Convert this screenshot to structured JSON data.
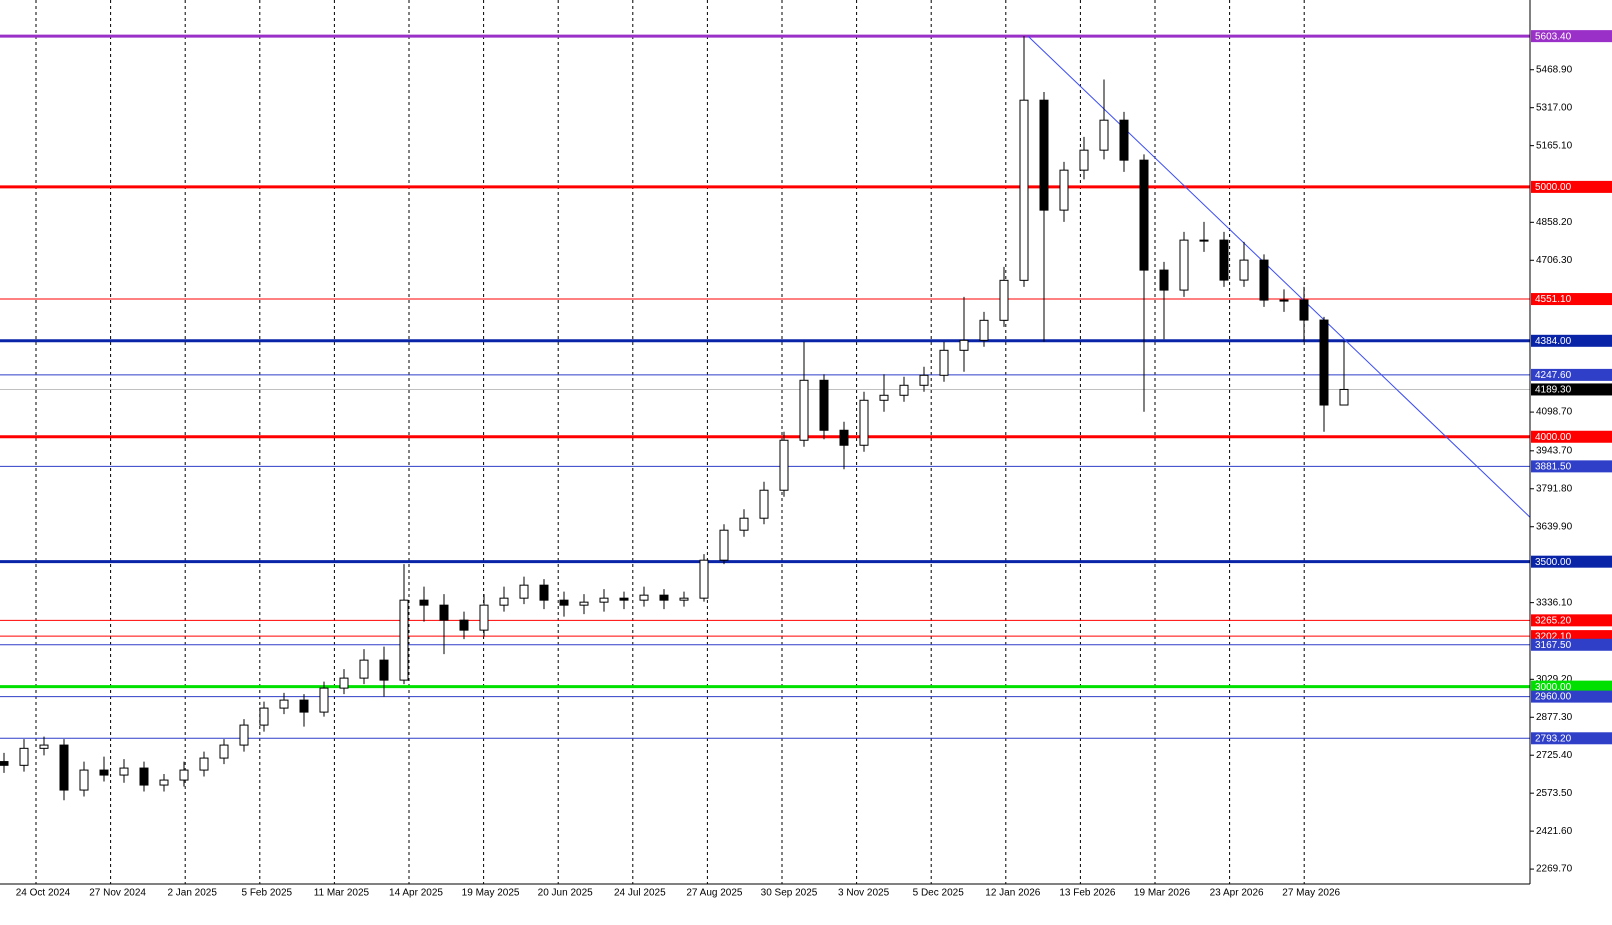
{
  "chart_data": {
    "type": "candlestick",
    "open": [
      2700,
      2685,
      2753,
      2766,
      2586,
      2666,
      2646,
      2674,
      2606,
      2626,
      2666,
      2714,
      2766,
      2846,
      2914,
      2946,
      2898,
      2994,
      3034,
      3106,
      3026,
      3346,
      3326,
      3266,
      3226,
      3326,
      3354,
      3406,
      3346,
      3326,
      3338,
      3354,
      3346,
      3366,
      3346,
      3354,
      3506,
      3626,
      3674,
      3786,
      3986,
      4226,
      4026,
      3966,
      4146,
      4166,
      4206,
      4246,
      4346,
      4386,
      4466,
      4626,
      5347,
      4907,
      5067,
      5147,
      5267,
      5107,
      4667,
      4587,
      4787,
      4787,
      4627,
      4707,
      4547,
      4547,
      4467,
      4127
    ],
    "high": [
      2735,
      2790,
      2800,
      2790,
      2700,
      2720,
      2710,
      2700,
      2650,
      2700,
      2740,
      2790,
      2870,
      2940,
      2975,
      2970,
      3020,
      3070,
      3150,
      3160,
      3490,
      3400,
      3370,
      3300,
      3370,
      3400,
      3440,
      3430,
      3380,
      3370,
      3390,
      3380,
      3400,
      3390,
      3380,
      3530,
      3650,
      3710,
      3820,
      4020,
      4380,
      4250,
      4060,
      4180,
      4250,
      4240,
      4280,
      4380,
      4560,
      4500,
      4680,
      5603.4,
      5380,
      5100,
      5200,
      5430,
      5300,
      5130,
      4700,
      4820,
      4860,
      4820,
      4780,
      4730,
      4590,
      4600,
      4480,
      4384
    ],
    "low": [
      2655,
      2660,
      2725,
      2545,
      2560,
      2620,
      2615,
      2580,
      2580,
      2600,
      2640,
      2690,
      2740,
      2820,
      2890,
      2840,
      2880,
      2970,
      3010,
      2960,
      3010,
      3260,
      3130,
      3190,
      3200,
      3300,
      3330,
      3310,
      3280,
      3290,
      3300,
      3310,
      3320,
      3310,
      3320,
      3340,
      3490,
      3600,
      3650,
      3760,
      3960,
      3990,
      3870,
      3940,
      4100,
      4140,
      4180,
      4220,
      4260,
      4360,
      4440,
      4600,
      4380,
      4860,
      5030,
      5110,
      5060,
      4100,
      4390,
      4560,
      4740,
      4600,
      4600,
      4520,
      4500,
      4380,
      4020,
      4150
    ],
    "close": [
      2685,
      2753,
      2766,
      2586,
      2666,
      2646,
      2674,
      2606,
      2626,
      2666,
      2714,
      2766,
      2846,
      2914,
      2946,
      2898,
      2994,
      3034,
      3106,
      3026,
      3346,
      3326,
      3266,
      3226,
      3326,
      3354,
      3406,
      3346,
      3326,
      3338,
      3354,
      3346,
      3366,
      3346,
      3354,
      3506,
      3626,
      3674,
      3786,
      3986,
      4226,
      4026,
      3966,
      4146,
      4166,
      4206,
      4246,
      4346,
      4386,
      4466,
      4626,
      5347,
      4907,
      5067,
      5147,
      5267,
      5107,
      4667,
      4587,
      4787,
      4787,
      4627,
      4707,
      4547,
      4547,
      4467,
      4127,
      4189.3
    ],
    "ylim": [
      2210,
      5748
    ],
    "yticks": [
      {
        "value": 5468.9,
        "label": "5468.90"
      },
      {
        "value": 5317.0,
        "label": "5317.00"
      },
      {
        "value": 5165.1,
        "label": "5165.10"
      },
      {
        "value": 4858.2,
        "label": "4858.20"
      },
      {
        "value": 4706.3,
        "label": "4706.30"
      },
      {
        "value": 4098.7,
        "label": "4098.70"
      },
      {
        "value": 3943.7,
        "label": "3943.70"
      },
      {
        "value": 3791.8,
        "label": "3791.80"
      },
      {
        "value": 3639.9,
        "label": "3639.90"
      },
      {
        "value": 3336.1,
        "label": "3336.10"
      },
      {
        "value": 3029.2,
        "label": "3029.20"
      },
      {
        "value": 2877.3,
        "label": "2877.30"
      },
      {
        "value": 2725.4,
        "label": "2725.40"
      },
      {
        "value": 2573.5,
        "label": "2573.50"
      },
      {
        "value": 2421.6,
        "label": "2421.60"
      },
      {
        "value": 2269.7,
        "label": "2269.70"
      }
    ],
    "x_labels": [
      "24 Oct 2024",
      "27 Nov 2024",
      "2 Jan 2025",
      "5 Feb 2025",
      "11 Mar 2025",
      "14 Apr 2025",
      "19 May 2025",
      "20 Jun 2025",
      "24 Jul 2025",
      "27 Aug 2025",
      "30 Sep 2025",
      "3 Nov 2025",
      "5 Dec 2025",
      "12 Jan 2026",
      "13 Feb 2026",
      "19 Mar 2026",
      "23 Apr 2026",
      "27 May 2026"
    ],
    "grid": true,
    "levels": [
      {
        "value": 5603.4,
        "label": "5603.40",
        "color": "#9b30c8",
        "thick": true
      },
      {
        "value": 5000,
        "label": "5000.00",
        "color": "#ff0000",
        "thick": true
      },
      {
        "value": 4551.1,
        "label": "4551.10",
        "color": "#ff0000",
        "thick": false
      },
      {
        "value": 4384,
        "label": "4384.00",
        "color": "#0a24a8",
        "thick": true
      },
      {
        "value": 4247.6,
        "label": "4247.60",
        "color": "#2f3fc8",
        "thick": false
      },
      {
        "value": 4189.3,
        "label": "4189.30",
        "color": "#c0c0c0",
        "thick": false,
        "label_color": "#000000"
      },
      {
        "value": 4000,
        "label": "4000.00",
        "color": "#ff0000",
        "thick": true
      },
      {
        "value": 3881.5,
        "label": "3881.50",
        "color": "#2f3fc8",
        "thick": false
      },
      {
        "value": 3500,
        "label": "3500.00",
        "color": "#0a24a8",
        "thick": true
      },
      {
        "value": 3265.2,
        "label": "3265.20",
        "color": "#ff0000",
        "thick": false
      },
      {
        "value": 3202.1,
        "label": "3202.10",
        "color": "#ff0000",
        "thick": false
      },
      {
        "value": 3167.5,
        "label": "3167.50",
        "color": "#2f3fc8",
        "thick": false
      },
      {
        "value": 3000,
        "label": "3000.00",
        "color": "#00e000",
        "thick": true
      },
      {
        "value": 2960,
        "label": "2960.00",
        "color": "#2f3fc8",
        "thick": false
      },
      {
        "value": 2793.2,
        "label": "2793.20",
        "color": "#2f3fc8",
        "thick": false
      }
    ],
    "trendline": {
      "start": 5603.4,
      "end": 3678,
      "color": "#3b4cf5"
    }
  }
}
